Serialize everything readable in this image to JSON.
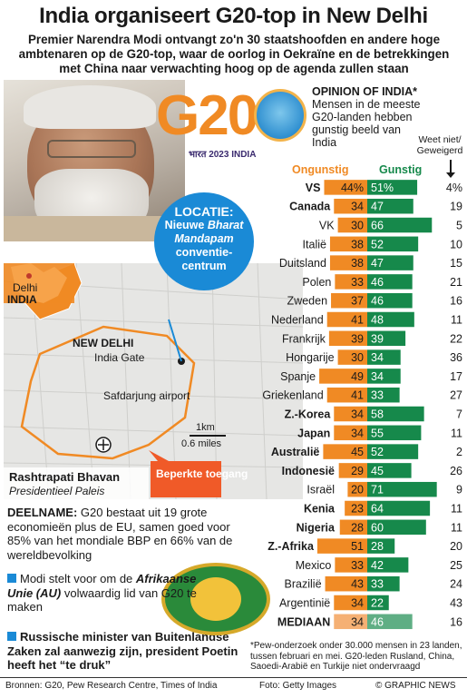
{
  "title": "India organiseert G20-top in New Delhi",
  "subtitle": "Premier Narendra Modi ontvangt zo'n 30 staatshoofden en andere hoge ambtenaren op de G20-top, waar de oorlog in Oekraïne en de betrekkingen met China naar verwachting hoog op de agenda zullen staan",
  "logo": {
    "text": "G20",
    "caption": "भारत 2023 INDIA"
  },
  "location": {
    "head": "LOCATIE:",
    "line1": "Nieuwe",
    "em": "Bharat Mandapam",
    "line2": "conventie-",
    "line3": "centrum"
  },
  "map": {
    "delhi": "Delhi",
    "india": "INDIA",
    "new_delhi": "NEW DELHI",
    "india_gate": "India Gate",
    "airport": "Safdarjung airport",
    "scale_km": "1km",
    "scale_mi": "0.6 miles",
    "bhavan": "Rashtrapati Bhavan",
    "bhavan_sub": "Presidentieel Paleis",
    "restricted": "Beperkte toegang"
  },
  "deelname": {
    "head": "DEELNAME:",
    "text": "G20 bestaat uit 19 grote economieën plus de EU, samen goed voor 85% van het mondiale BBP en 66% van de wereldbevolking"
  },
  "bullets": [
    {
      "text_a": "Modi stelt voor om de",
      "text_em": "Afrikaanse Unie (AU)",
      "text_b": "volwaardig lid van G20 te maken"
    },
    {
      "text": "Russische minister van Buitenlandse Zaken zal aanwezig zijn, president Poetin heeft het “te druk”"
    }
  ],
  "opinion": {
    "head": "OPINION OF INDIA*",
    "text": "Mensen in de meeste G20-landen hebben gunstig beeld van India",
    "weet": "Weet niet/ Geweigerd"
  },
  "colors": {
    "negative": "#f08a24",
    "positive": "#16894b",
    "accent": "#1a8ad6"
  },
  "chart_data": {
    "type": "bar",
    "stacked": true,
    "legend": [
      "Ongunstig",
      "Gunstig"
    ],
    "categories": [
      "VS",
      "Canada",
      "VK",
      "Italië",
      "Duitsland",
      "Polen",
      "Zweden",
      "Nederland",
      "Frankrijk",
      "Hongarije",
      "Spanje",
      "Griekenland",
      "Z.-Korea",
      "Japan",
      "Australië",
      "Indonesië",
      "Israël",
      "Kenia",
      "Nigeria",
      "Z.-Afrika",
      "Mexico",
      "Brazilië",
      "Argentinië",
      "MEDIAAN"
    ],
    "bold_categories": [
      "VS",
      "Canada",
      "Z.-Korea",
      "Japan",
      "Australië",
      "Indonesië",
      "Kenia",
      "Nigeria",
      "Z.-Afrika",
      "MEDIAAN"
    ],
    "series": [
      {
        "name": "Ongunstig",
        "values": [
          44,
          34,
          30,
          38,
          38,
          33,
          37,
          41,
          39,
          30,
          49,
          41,
          34,
          34,
          45,
          29,
          20,
          23,
          28,
          51,
          33,
          43,
          34,
          34
        ]
      },
      {
        "name": "Gunstig",
        "values": [
          51,
          47,
          66,
          52,
          47,
          46,
          46,
          48,
          39,
          34,
          34,
          33,
          58,
          55,
          52,
          45,
          71,
          64,
          60,
          28,
          42,
          33,
          22,
          46
        ]
      },
      {
        "name": "Weet niet/Geweigerd",
        "values": [
          4,
          19,
          5,
          10,
          15,
          21,
          16,
          11,
          22,
          36,
          17,
          27,
          7,
          11,
          2,
          26,
          9,
          11,
          11,
          20,
          25,
          24,
          43,
          16
        ]
      }
    ],
    "first_row_percent": true
  },
  "footnote": "*Pew-onderzoek onder 30.000 mensen in 23 landen, tussen februari en mei. G20-leden Rusland, China, Saoedi-Arabië en Turkije niet ondervraagd",
  "sources": "Bronnen: G20, Pew Research Centre, Times of India",
  "photo_credit": "Foto: Getty Images",
  "brand": "© GRAPHIC NEWS"
}
